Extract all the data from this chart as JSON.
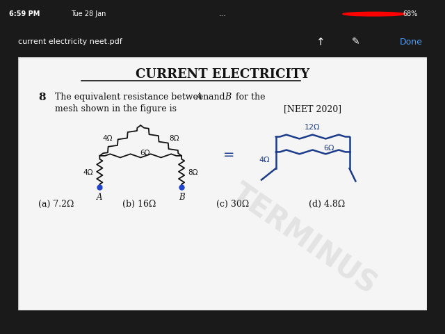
{
  "bg_color": "#1a1a1a",
  "status_bar_color": "#1a1a1a",
  "status_time": "6:59 PM",
  "status_date": "Tue 28 Jan",
  "status_dots": "...",
  "battery": "68%",
  "top_bar_color": "#2a2a2a",
  "file_name": "current electricity neet.pdf",
  "done_text": "Done",
  "paper_color": "#f5f5f5",
  "title": "CURRENT ELECTRICITY",
  "title_color": "#111111",
  "question_num": "8",
  "question_text": "The equivalent resistance between ",
  "question_A": "A",
  "question_mid": " and ",
  "question_B": "B",
  "question_end": " for the",
  "question_line2": "mesh shown in the figure is",
  "neet_tag": "[NEET 2020]",
  "options_a": "(a) 7.2Ω",
  "options_b": "(b) 16Ω",
  "options_c": "(c) 30Ω",
  "options_d": "(d) 4.8Ω",
  "terminus_text": "TERMINUS",
  "terminus_color": "#bbbbbb",
  "circuit_color": "#111111",
  "hand_draw_color": "#1a3a8a"
}
